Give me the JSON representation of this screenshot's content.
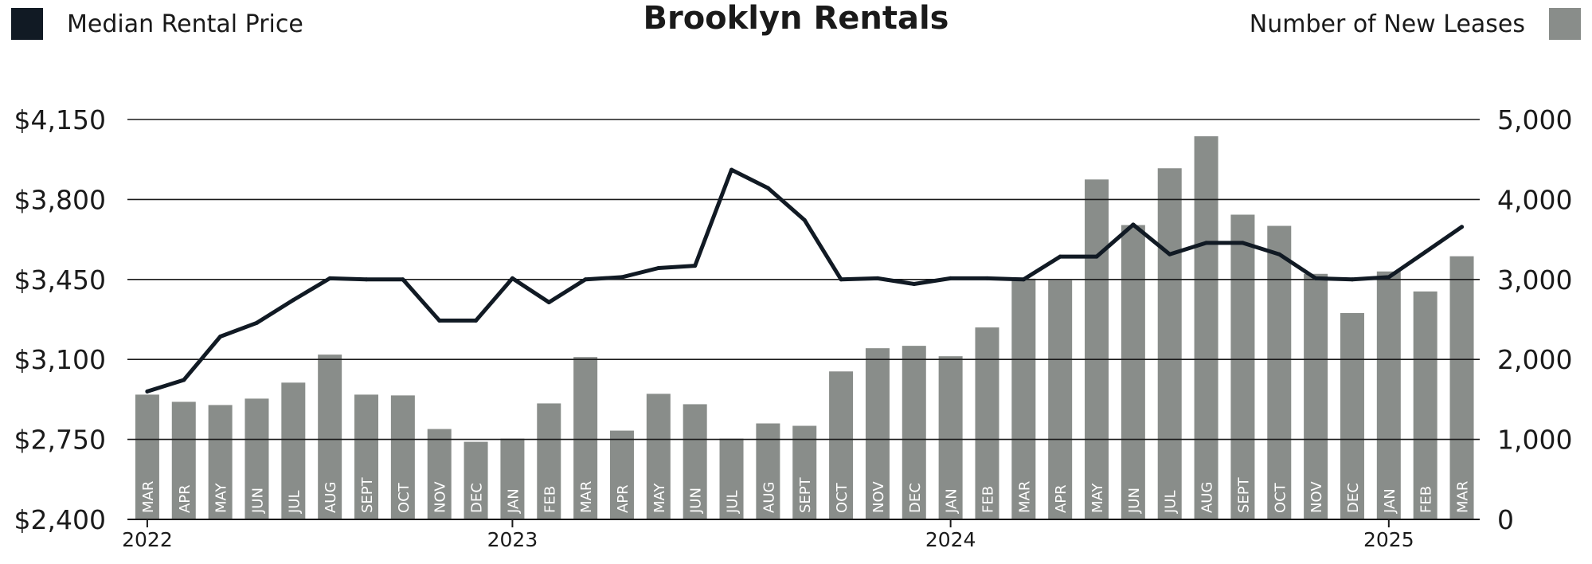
{
  "colors": {
    "line": "#111a24",
    "bar": "#898d8a",
    "grid": "#1a1a1a",
    "text": "#1a1a1a",
    "month_text": "#ffffff"
  },
  "legend": {
    "left": {
      "label": "Median Rental Price",
      "color": "#111a24"
    },
    "right": {
      "label": "Number of New Leases",
      "color": "#898d8a"
    }
  },
  "chart_data": {
    "type": "bar+line",
    "title": "Brooklyn Rentals",
    "grid": true,
    "legend_position": "top",
    "categories": [
      "MAR",
      "APR",
      "MAY",
      "JUN",
      "JUL",
      "AUG",
      "SEPT",
      "OCT",
      "NOV",
      "DEC",
      "JAN",
      "FEB",
      "MAR",
      "APR",
      "MAY",
      "JUN",
      "JUL",
      "AUG",
      "SEPT",
      "OCT",
      "NOV",
      "DEC",
      "JAN",
      "FEB",
      "MAR",
      "APR",
      "MAY",
      "JUN",
      "JUL",
      "AUG",
      "SEPT",
      "OCT",
      "NOV",
      "DEC",
      "JAN",
      "FEB",
      "MAR"
    ],
    "years": [
      {
        "label": "2022",
        "category_index": 0
      },
      {
        "label": "2023",
        "category_index": 10
      },
      {
        "label": "2024",
        "category_index": 22
      },
      {
        "label": "2025",
        "category_index": 34
      }
    ],
    "left_axis": {
      "min": 2400,
      "max": 4150,
      "ticks": [
        2400,
        2750,
        3100,
        3450,
        3800,
        4150
      ],
      "tick_labels": [
        "$2,400",
        "$2,750",
        "$3,100",
        "$3,450",
        "$3,800",
        "$4,150"
      ]
    },
    "right_axis": {
      "min": 0,
      "max": 5000,
      "ticks": [
        0,
        1000,
        2000,
        3000,
        4000,
        5000
      ],
      "tick_labels": [
        "0",
        "1,000",
        "2,000",
        "3,000",
        "4,000",
        "5,000"
      ]
    },
    "series": [
      {
        "name": "Number of New Leases",
        "type": "bar",
        "axis": "right",
        "values": [
          1560,
          1470,
          1430,
          1510,
          1710,
          2060,
          1560,
          1550,
          1130,
          970,
          1010,
          1450,
          2030,
          1110,
          1570,
          1440,
          1010,
          1200,
          1170,
          1850,
          2140,
          2170,
          2040,
          2400,
          3010,
          2990,
          4250,
          3680,
          4390,
          4790,
          3810,
          3670,
          3070,
          2580,
          3100,
          2850,
          3290
        ]
      },
      {
        "name": "Median Rental Price",
        "type": "line",
        "axis": "left",
        "values": [
          2960,
          3010,
          3200,
          3260,
          3360,
          3455,
          3450,
          3450,
          3270,
          3270,
          3455,
          3350,
          3450,
          3460,
          3500,
          3510,
          3930,
          3850,
          3710,
          3450,
          3455,
          3430,
          3455,
          3455,
          3450,
          3550,
          3550,
          3690,
          3560,
          3610,
          3610,
          3560,
          3455,
          3450,
          3460,
          3570,
          3680
        ]
      }
    ]
  }
}
